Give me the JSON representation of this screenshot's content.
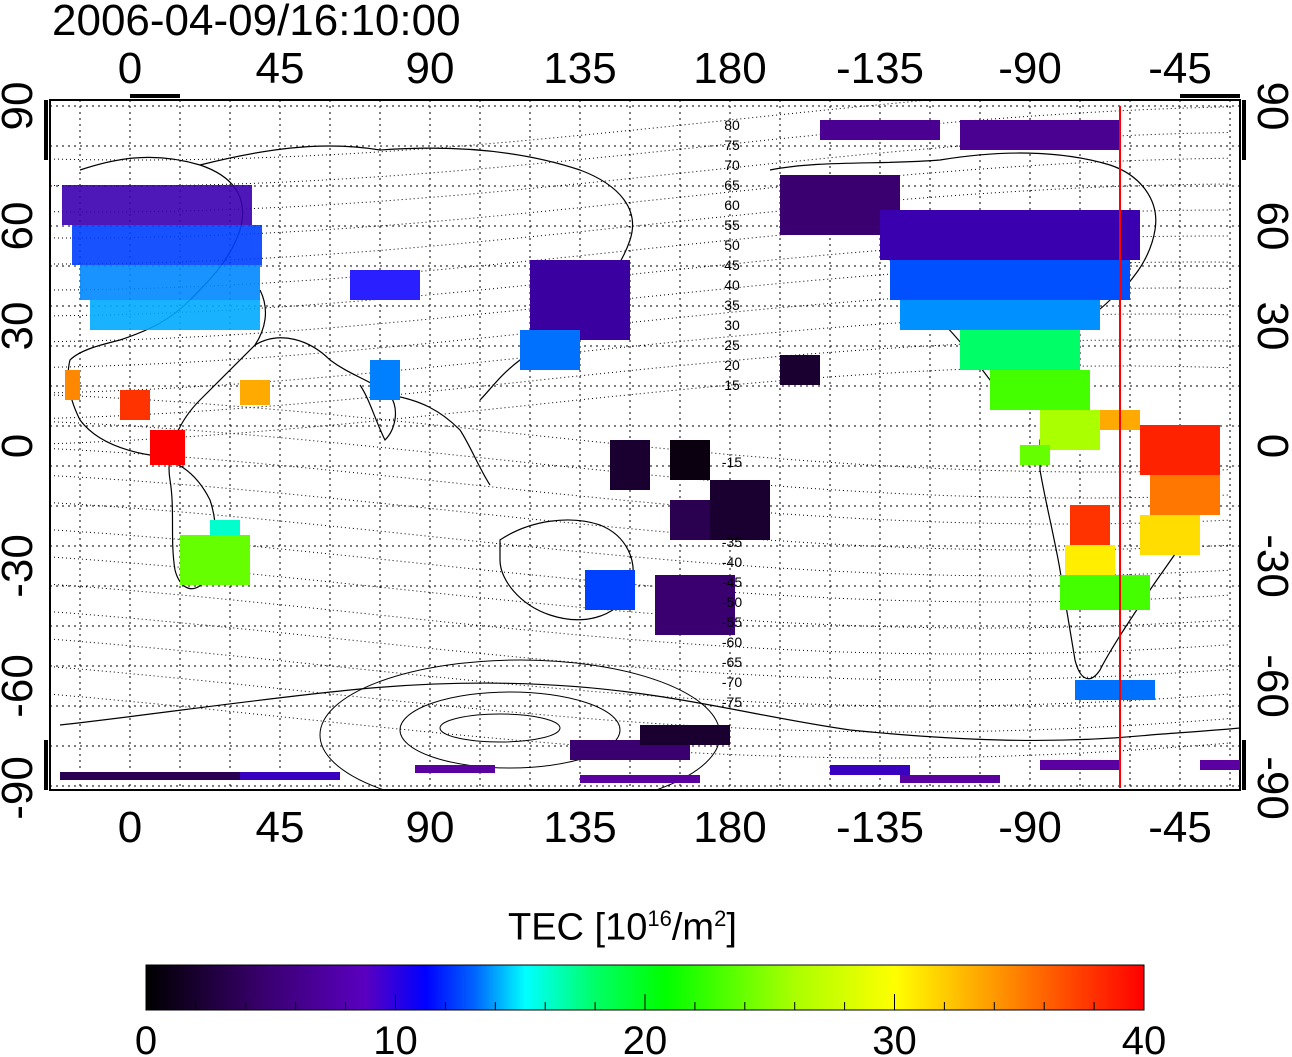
{
  "title": "2006-04-09/16:10:00",
  "map": {
    "top_lon_ticks": [
      "0",
      "45",
      "90",
      "135",
      "180",
      "-135",
      "-90",
      "-45"
    ],
    "bottom_lon_ticks": [
      "0",
      "45",
      "90",
      "135",
      "180",
      "-135",
      "-90",
      "-45"
    ],
    "left_lat_ticks": [
      "90",
      "60",
      "30",
      "0",
      "-30",
      "-60",
      "-90"
    ],
    "right_lat_ticks": [
      "90",
      "60",
      "30",
      "0",
      "-30",
      "-60",
      "-90"
    ],
    "contour_labels_north": [
      "80",
      "75",
      "70",
      "65",
      "60",
      "55",
      "50",
      "45",
      "40",
      "35",
      "30",
      "25",
      "20",
      "15"
    ],
    "contour_labels_south": [
      "-15",
      "-35",
      "-40",
      "-45",
      "-50",
      "-55",
      "-60",
      "-65",
      "-70",
      "-75"
    ],
    "terminator_color": "#ff0000",
    "grid": "dotted"
  },
  "colorbar": {
    "title_prefix": "TEC  [10",
    "title_exp": "16",
    "title_mid": "/m",
    "title_exp2": "2",
    "title_suffix": "]",
    "ticks": [
      "0",
      "10",
      "20",
      "30",
      "40"
    ],
    "colors": [
      "#000000",
      "#3a0070",
      "#5a00c0",
      "#0000ff",
      "#0066ff",
      "#00ffff",
      "#00ff66",
      "#00ff00",
      "#aaff00",
      "#ffff00",
      "#ff9900",
      "#ff4400",
      "#ff0000"
    ]
  }
}
